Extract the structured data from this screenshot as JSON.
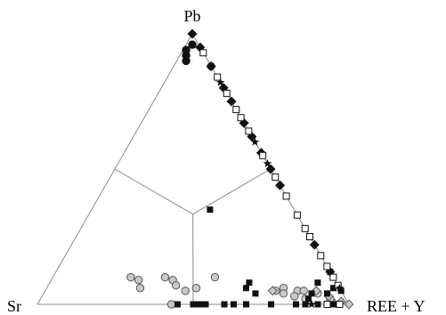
{
  "chart_data": {
    "type": "scatter",
    "subtype": "ternary",
    "title": "",
    "vertices": {
      "top": "Pb",
      "left": "Sr",
      "right": "REE + Y"
    },
    "axes_order": [
      "Pb",
      "Sr",
      "REE + Y"
    ],
    "field_boundaries": [
      {
        "from": [
          0.333,
          0.333,
          0.333
        ],
        "to": [
          0.5,
          0.5,
          0.0
        ]
      },
      {
        "from": [
          0.333,
          0.333,
          0.333
        ],
        "to": [
          0.5,
          0.0,
          0.5
        ]
      },
      {
        "from": [
          0.333,
          0.333,
          0.333
        ],
        "to": [
          0.0,
          0.5,
          0.5
        ]
      }
    ],
    "grid": false,
    "legend": "none",
    "colors": {
      "edge": "#8a8a8a",
      "black": "#111111",
      "gray_fill": "#c8c8c8",
      "gray_stroke": "#555555",
      "white": "#ffffff"
    },
    "series": [
      {
        "marker": "circle-black",
        "points": [
          [
            0.96,
            0.02,
            0.02
          ],
          [
            0.94,
            0.05,
            0.01
          ],
          [
            0.92,
            0.06,
            0.02
          ],
          [
            0.9,
            0.07,
            0.03
          ]
        ]
      },
      {
        "marker": "circle-gray",
        "points": [
          [
            0.88,
            0.0,
            0.12
          ],
          [
            0.1,
            0.65,
            0.25
          ],
          [
            0.09,
            0.63,
            0.28
          ],
          [
            0.06,
            0.64,
            0.3
          ],
          [
            0.1,
            0.54,
            0.36
          ],
          [
            0.09,
            0.52,
            0.39
          ],
          [
            0.07,
            0.52,
            0.41
          ],
          [
            0.05,
            0.5,
            0.45
          ],
          [
            0.06,
            0.46,
            0.48
          ],
          [
            0.0,
            0.57,
            0.43
          ],
          [
            0.1,
            0.38,
            0.52
          ],
          [
            0.05,
            0.21,
            0.74
          ],
          [
            0.06,
            0.18,
            0.76
          ],
          [
            0.04,
            0.19,
            0.77
          ],
          [
            0.05,
            0.14,
            0.81
          ],
          [
            0.03,
            0.16,
            0.81
          ],
          [
            0.05,
            0.12,
            0.83
          ],
          [
            0.02,
            0.13,
            0.85
          ],
          [
            0.04,
            0.08,
            0.88
          ],
          [
            0.01,
            0.05,
            0.94
          ],
          [
            0.02,
            0.05,
            0.93
          ]
        ]
      },
      {
        "marker": "diamond-black",
        "points": [
          [
            1.0,
            0.0,
            0.0
          ],
          [
            0.95,
            0.0,
            0.05
          ],
          [
            0.88,
            0.0,
            0.12
          ],
          [
            0.8,
            0.0,
            0.2
          ],
          [
            0.75,
            0.0,
            0.25
          ],
          [
            0.67,
            0.0,
            0.33
          ],
          [
            0.62,
            0.0,
            0.38
          ],
          [
            0.56,
            0.0,
            0.44
          ],
          [
            0.5,
            0.0,
            0.5
          ],
          [
            0.44,
            0.0,
            0.56
          ],
          [
            0.22,
            0.0,
            0.78
          ],
          [
            0.12,
            0.0,
            0.88
          ]
        ]
      },
      {
        "marker": "diamond-gray",
        "points": [
          [
            0.05,
            0.22,
            0.73
          ],
          [
            0.03,
            0.05,
            0.92
          ],
          [
            0.01,
            0.02,
            0.97
          ],
          [
            0.0,
            0.0,
            1.0
          ],
          [
            0.05,
            0.08,
            0.87
          ]
        ]
      },
      {
        "marker": "square-black",
        "points": [
          [
            0.35,
            0.27,
            0.38
          ],
          [
            0.08,
            0.28,
            0.64
          ],
          [
            0.06,
            0.3,
            0.64
          ],
          [
            0.04,
            0.28,
            0.68
          ],
          [
            0.12,
            0.0,
            0.88
          ],
          [
            0.1,
            0.0,
            0.9
          ],
          [
            0.06,
            0.02,
            0.92
          ],
          [
            0.05,
            0.0,
            0.95
          ],
          [
            0.08,
            0.06,
            0.86
          ],
          [
            0.04,
            0.05,
            0.91
          ],
          [
            0.0,
            0.55,
            0.45
          ],
          [
            0.0,
            0.5,
            0.5
          ],
          [
            0.0,
            0.48,
            0.52
          ],
          [
            0.0,
            0.46,
            0.54
          ],
          [
            0.0,
            0.4,
            0.6
          ],
          [
            0.0,
            0.37,
            0.63
          ],
          [
            0.0,
            0.33,
            0.67
          ],
          [
            0.0,
            0.25,
            0.75
          ],
          [
            0.0,
            0.17,
            0.83
          ],
          [
            0.0,
            0.14,
            0.86
          ],
          [
            0.0,
            0.1,
            0.9
          ],
          [
            0.0,
            0.06,
            0.94
          ],
          [
            0.0,
            0.04,
            0.96
          ],
          [
            0.04,
            0.1,
            0.86
          ],
          [
            0.02,
            0.12,
            0.86
          ]
        ]
      },
      {
        "marker": "square-open",
        "points": [
          [
            0.93,
            0.0,
            0.07
          ],
          [
            0.84,
            0.0,
            0.16
          ],
          [
            0.78,
            0.0,
            0.22
          ],
          [
            0.72,
            0.0,
            0.28
          ],
          [
            0.69,
            0.0,
            0.31
          ],
          [
            0.64,
            0.0,
            0.36
          ],
          [
            0.55,
            0.0,
            0.45
          ],
          [
            0.47,
            0.0,
            0.53
          ],
          [
            0.4,
            0.0,
            0.6
          ],
          [
            0.33,
            0.0,
            0.67
          ],
          [
            0.28,
            0.0,
            0.72
          ],
          [
            0.25,
            0.0,
            0.75
          ],
          [
            0.18,
            0.0,
            0.82
          ],
          [
            0.14,
            0.0,
            0.86
          ],
          [
            0.1,
            0.0,
            0.9
          ],
          [
            0.07,
            0.0,
            0.93
          ],
          [
            0.0,
            0.03,
            0.97
          ],
          [
            0.0,
            0.07,
            0.93
          ]
        ]
      },
      {
        "marker": "star-black",
        "points": [
          [
            0.82,
            0.0,
            0.18
          ],
          [
            0.6,
            0.0,
            0.4
          ],
          [
            0.52,
            0.0,
            0.48
          ],
          [
            0.06,
            0.0,
            0.94
          ],
          [
            0.0,
            0.12,
            0.88
          ]
        ]
      }
    ]
  }
}
